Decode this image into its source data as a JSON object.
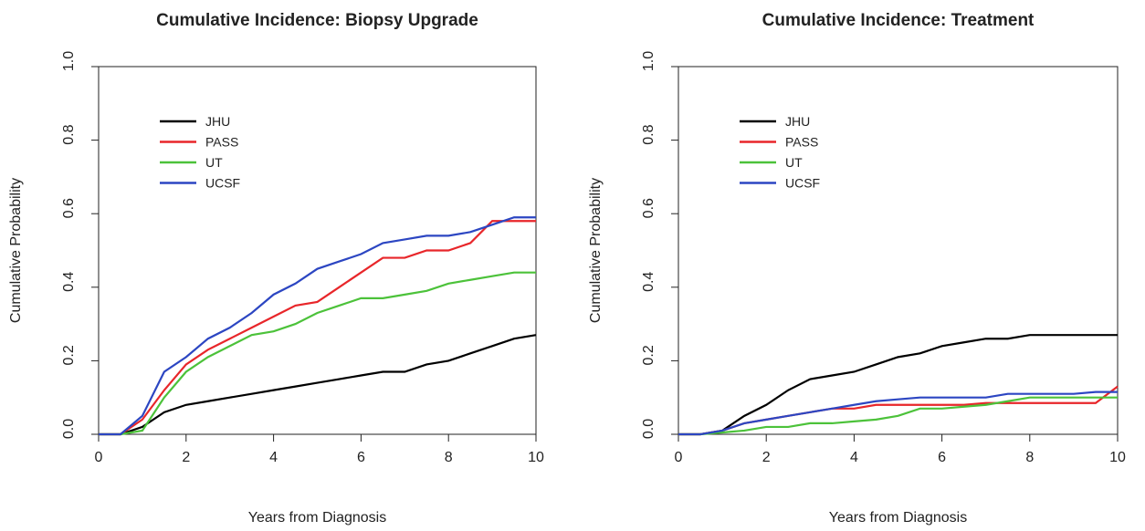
{
  "chart_data": [
    {
      "type": "line",
      "title": "Cumulative Incidence: Biopsy Upgrade",
      "xlabel": "Years from Diagnosis",
      "ylabel": "Cumulative Probability",
      "x": [
        0,
        0.5,
        1,
        1.5,
        2,
        2.5,
        3,
        3.5,
        4,
        4.5,
        5,
        5.5,
        6,
        6.5,
        7,
        7.5,
        8,
        8.5,
        9,
        9.5,
        10
      ],
      "series": [
        {
          "name": "JHU",
          "color": "#000000",
          "values": [
            0,
            0,
            0.02,
            0.06,
            0.08,
            0.09,
            0.1,
            0.11,
            0.12,
            0.13,
            0.14,
            0.15,
            0.16,
            0.17,
            0.17,
            0.19,
            0.2,
            0.22,
            0.24,
            0.26,
            0.27
          ]
        },
        {
          "name": "PASS",
          "color": "#e8262a",
          "values": [
            0,
            0,
            0.04,
            0.12,
            0.19,
            0.23,
            0.26,
            0.29,
            0.32,
            0.35,
            0.36,
            0.4,
            0.44,
            0.48,
            0.48,
            0.5,
            0.5,
            0.52,
            0.58,
            0.58,
            0.58
          ]
        },
        {
          "name": "UT",
          "color": "#4cc23a",
          "values": [
            0,
            0,
            0.01,
            0.1,
            0.17,
            0.21,
            0.24,
            0.27,
            0.28,
            0.3,
            0.33,
            0.35,
            0.37,
            0.37,
            0.38,
            0.39,
            0.41,
            0.42,
            0.43,
            0.44,
            0.44
          ]
        },
        {
          "name": "UCSF",
          "color": "#2c46c2",
          "values": [
            0,
            0,
            0.05,
            0.17,
            0.21,
            0.26,
            0.29,
            0.33,
            0.38,
            0.41,
            0.45,
            0.47,
            0.49,
            0.52,
            0.53,
            0.54,
            0.54,
            0.55,
            0.57,
            0.59,
            0.59
          ]
        }
      ],
      "xlim": [
        0,
        10
      ],
      "ylim": [
        0,
        1
      ],
      "xticks": [
        0,
        2,
        4,
        6,
        8,
        10
      ],
      "yticks": [
        {
          "value": 0,
          "label": "0.0"
        },
        0.2,
        0.4,
        0.6,
        0.8,
        {
          "value": 1,
          "label": "1.0"
        }
      ],
      "legend": "upper left"
    },
    {
      "type": "line",
      "title": "Cumulative Incidence: Treatment",
      "xlabel": "Years from Diagnosis",
      "ylabel": "Cumulative Probability",
      "x": [
        0,
        0.5,
        1,
        1.5,
        2,
        2.5,
        3,
        3.5,
        4,
        4.5,
        5,
        5.5,
        6,
        6.5,
        7,
        7.5,
        8,
        8.5,
        9,
        9.5,
        10
      ],
      "series": [
        {
          "name": "JHU",
          "color": "#000000",
          "values": [
            0,
            0,
            0.01,
            0.05,
            0.08,
            0.12,
            0.15,
            0.16,
            0.17,
            0.19,
            0.21,
            0.22,
            0.24,
            0.25,
            0.26,
            0.26,
            0.27,
            0.27,
            0.27,
            0.27,
            0.27
          ]
        },
        {
          "name": "PASS",
          "color": "#e8262a",
          "values": [
            0,
            0,
            0.01,
            0.03,
            0.04,
            0.05,
            0.06,
            0.07,
            0.07,
            0.08,
            0.08,
            0.08,
            0.08,
            0.08,
            0.085,
            0.085,
            0.085,
            0.085,
            0.085,
            0.085,
            0.13
          ]
        },
        {
          "name": "UT",
          "color": "#4cc23a",
          "values": [
            0,
            0,
            0.005,
            0.01,
            0.02,
            0.02,
            0.03,
            0.03,
            0.035,
            0.04,
            0.05,
            0.07,
            0.07,
            0.075,
            0.08,
            0.09,
            0.1,
            0.1,
            0.1,
            0.1,
            0.1
          ]
        },
        {
          "name": "UCSF",
          "color": "#2c46c2",
          "values": [
            0,
            0,
            0.01,
            0.03,
            0.04,
            0.05,
            0.06,
            0.07,
            0.08,
            0.09,
            0.095,
            0.1,
            0.1,
            0.1,
            0.1,
            0.11,
            0.11,
            0.11,
            0.11,
            0.115,
            0.115
          ]
        }
      ],
      "xlim": [
        0,
        10
      ],
      "ylim": [
        0,
        1
      ],
      "xticks": [
        0,
        2,
        4,
        6,
        8,
        10
      ],
      "yticks": [
        {
          "value": 0,
          "label": "0.0"
        },
        0.2,
        0.4,
        0.6,
        0.8,
        {
          "value": 1,
          "label": "1.0"
        }
      ],
      "legend": "upper left"
    }
  ]
}
